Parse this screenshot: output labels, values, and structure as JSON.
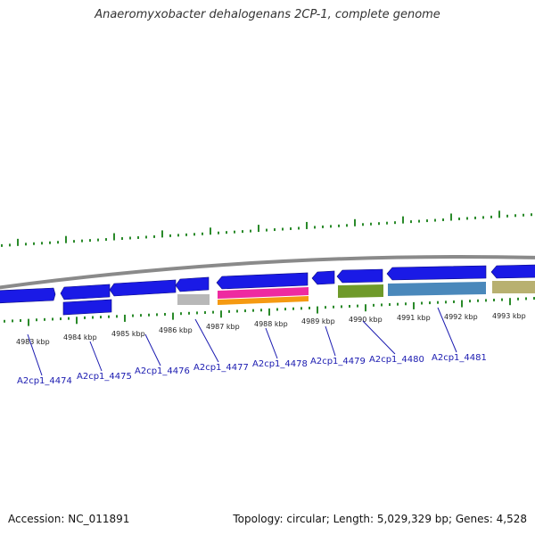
{
  "title": "Anaeromyxobacter dehalogenans 2CP-1, complete genome",
  "footer": {
    "accession": "Accession: NC_011891",
    "topology": "Topology: circular; Length: 5,029,329 bp; Genes: 4,528"
  },
  "colors": {
    "backbone": "#8a8a8a",
    "tick": "#2a8a2a",
    "cds": "#1a1ae6",
    "label": "#1a1ab0",
    "leader_line": "#1a1ab0"
  },
  "scale_labels": [
    "4983 kbp",
    "4984 kbp",
    "4985 kbp",
    "4986 kbp",
    "4987 kbp",
    "4988 kbp",
    "4989 kbp",
    "4990 kbp",
    "4991 kbp",
    "4992 kbp",
    "4993 kbp"
  ],
  "genes": [
    {
      "name": "A2cp1_4474"
    },
    {
      "name": "A2cp1_4475"
    },
    {
      "name": "A2cp1_4476"
    },
    {
      "name": "A2cp1_4477"
    },
    {
      "name": "A2cp1_4478"
    },
    {
      "name": "A2cp1_4479"
    },
    {
      "name": "A2cp1_4480"
    },
    {
      "name": "A2cp1_4481"
    }
  ],
  "feature_colors": {
    "gray": "#b8b8b8",
    "magenta": "#ee2aa0",
    "orange": "#f59a12",
    "olive": "#6f9a2a",
    "steelblue": "#4a88bb",
    "khaki": "#b8b070"
  }
}
